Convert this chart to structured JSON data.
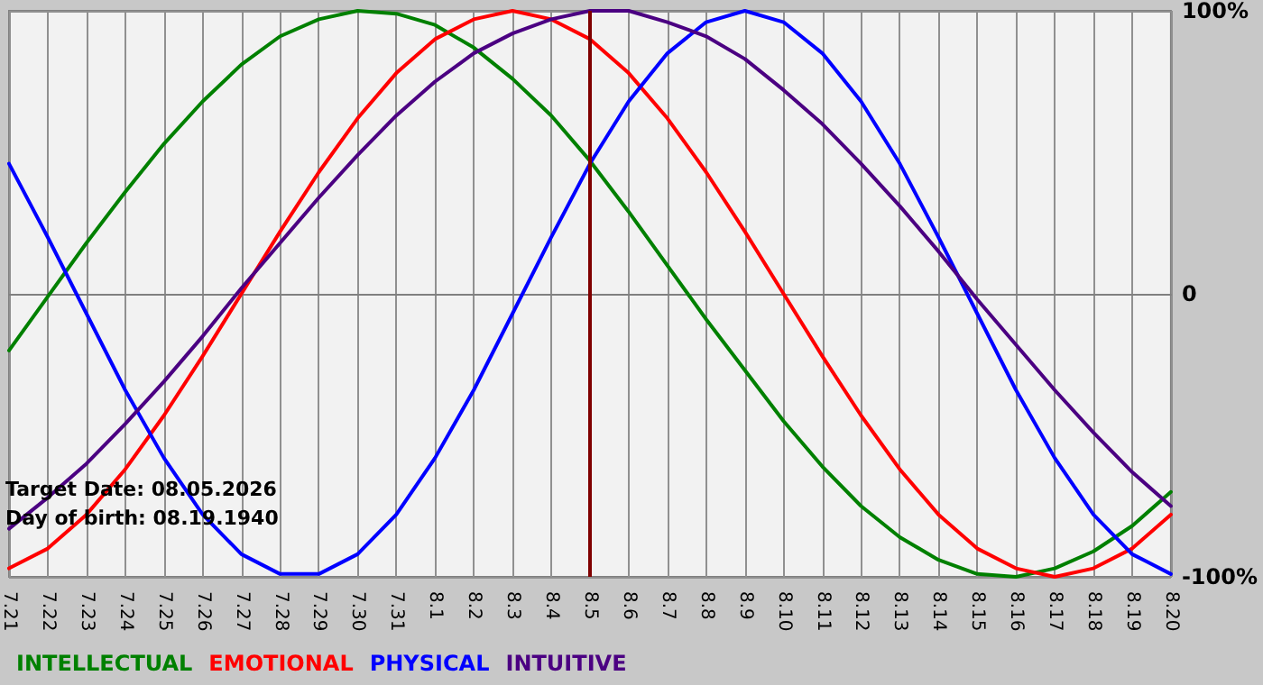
{
  "chart_data": {
    "type": "line",
    "categories": [
      "7.21",
      "7.22",
      "7.23",
      "7.24",
      "7.25",
      "7.26",
      "7.27",
      "7.28",
      "7.29",
      "7.30",
      "7.31",
      "8.1",
      "8.2",
      "8.3",
      "8.4",
      "8.5",
      "8.6",
      "8.7",
      "8.8",
      "8.9",
      "8.10",
      "8.11",
      "8.12",
      "8.13",
      "8.14",
      "8.15",
      "8.16",
      "8.17",
      "8.18",
      "8.19",
      "8.20"
    ],
    "series": [
      {
        "name": "INTELLECTUAL",
        "color": "#008000",
        "values": [
          -20,
          -1,
          18,
          36,
          53,
          68,
          81,
          91,
          97,
          100,
          99,
          95,
          87,
          76,
          63,
          47,
          29,
          10,
          -9,
          -27,
          -45,
          -61,
          -75,
          -86,
          -94,
          -99,
          -100,
          -97,
          -91,
          -82,
          -70
        ]
      },
      {
        "name": "EMOTIONAL",
        "color": "#ff0000",
        "values": [
          -97,
          -90,
          -78,
          -62,
          -43,
          -22,
          0,
          22,
          43,
          62,
          78,
          90,
          97,
          100,
          97,
          90,
          78,
          62,
          43,
          22,
          0,
          -22,
          -43,
          -62,
          -78,
          -90,
          -97,
          -100,
          -97,
          -90,
          -78
        ]
      },
      {
        "name": "PHYSICAL",
        "color": "#0000ff",
        "values": [
          46,
          20,
          -7,
          -34,
          -58,
          -78,
          -92,
          -99,
          -99,
          -92,
          -78,
          -58,
          -34,
          -7,
          20,
          46,
          68,
          85,
          96,
          100,
          96,
          85,
          68,
          46,
          20,
          -7,
          -34,
          -58,
          -78,
          -92,
          -99
        ]
      },
      {
        "name": "INTUITIVE",
        "color": "#4b0082",
        "values": [
          -83,
          -72,
          -60,
          -46,
          -31,
          -15,
          2,
          18,
          34,
          49,
          63,
          75,
          85,
          92,
          97,
          100,
          100,
          96,
          91,
          83,
          72,
          60,
          46,
          31,
          15,
          -2,
          -18,
          -34,
          -49,
          -63,
          -75
        ]
      }
    ],
    "ylim": [
      -100,
      100
    ],
    "yticks": [
      {
        "value": -100,
        "label": "-100%"
      },
      0,
      {
        "value": 100,
        "label": "100%"
      }
    ],
    "grid": true,
    "legend": "bottom left",
    "marker": "none",
    "ref_lines": [
      {
        "axis": "x",
        "value": "8.5",
        "color": "#800000"
      }
    ],
    "annotations": [
      "Target Date: 08.05.2026",
      "Day of birth: 08.19.1940"
    ]
  }
}
